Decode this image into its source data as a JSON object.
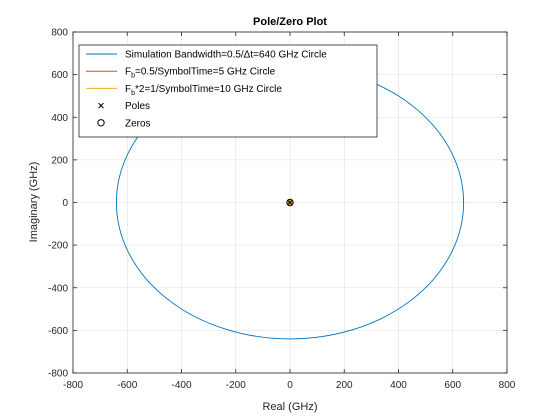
{
  "chart_data": {
    "type": "scatter",
    "title": "Pole/Zero Plot",
    "xlabel": "Real (GHz)",
    "ylabel": "Imaginary (GHz)",
    "xlim": [
      -800,
      800
    ],
    "ylim": [
      -800,
      800
    ],
    "xticks": [
      -800,
      -600,
      -400,
      -200,
      0,
      200,
      400,
      600,
      800
    ],
    "yticks": [
      -800,
      -600,
      -400,
      -200,
      0,
      200,
      400,
      600,
      800
    ],
    "grid": true,
    "legend_position": "top-left",
    "series": [
      {
        "kind": "circle",
        "radius": 640,
        "color": "#0072BD",
        "legend": {
          "main": "Simulation Bandwidth=0.5/Δt=640 GHz Circle"
        }
      },
      {
        "kind": "circle",
        "radius": 5,
        "color": "#D95319",
        "legend": {
          "pre": "F",
          "sub": "b",
          "post": "=0.5/SymbolTime=5 GHz Circle"
        }
      },
      {
        "kind": "circle",
        "radius": 10,
        "color": "#EDB120",
        "legend": {
          "pre": "F",
          "sub": "b",
          "post": "*2=1/SymbolTime=10 GHz Circle"
        }
      },
      {
        "kind": "poles",
        "marker": "x",
        "color": "#000000",
        "points": [
          [
            0,
            0
          ]
        ],
        "legend": {
          "main": "Poles"
        }
      },
      {
        "kind": "zeros",
        "marker": "o",
        "color": "#000000",
        "points": [
          [
            0,
            0
          ]
        ],
        "legend": {
          "main": "Zeros"
        }
      }
    ]
  }
}
